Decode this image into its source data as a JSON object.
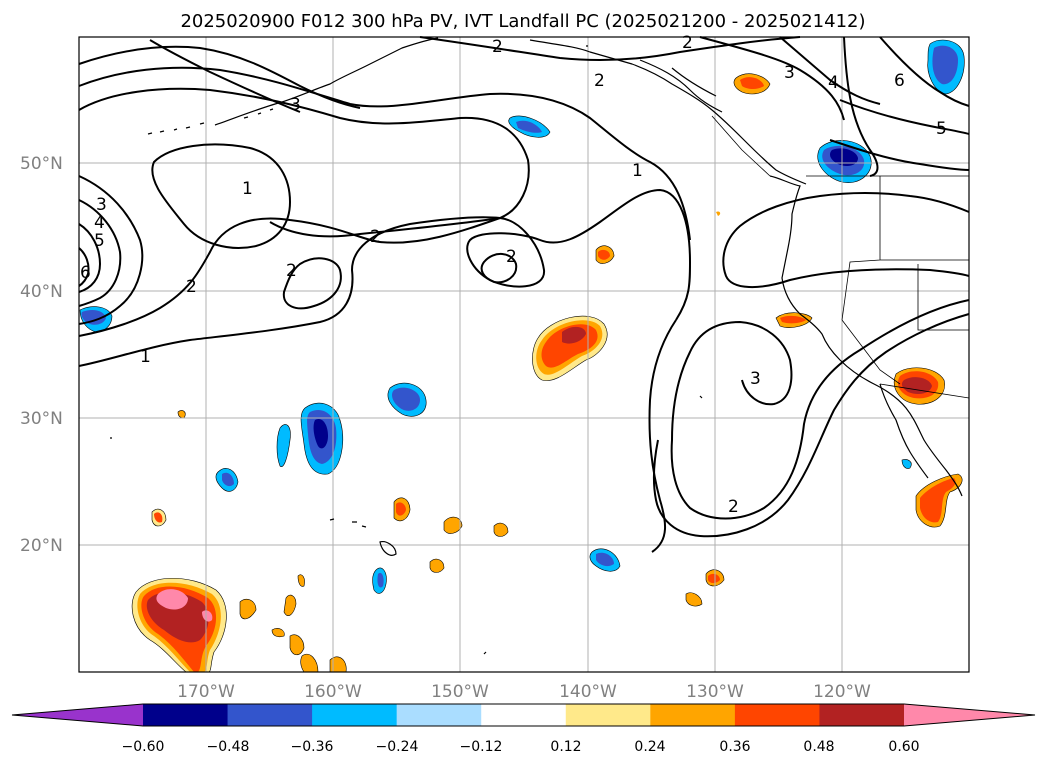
{
  "title": "2025020900 F012 300 hPa PV, IVT Landfall PC (2025021200 - 2025021412)",
  "map": {
    "lon_range": [
      -180,
      -110
    ],
    "lat_range": [
      10,
      60
    ],
    "lat_labels": [
      "20°N",
      "30°N",
      "40°N",
      "50°N"
    ],
    "lon_labels": [
      "170°W",
      "160°W",
      "150°W",
      "140°W",
      "130°W",
      "120°W"
    ],
    "grid": true,
    "contour_labels": [
      "1",
      "1",
      "1",
      "2",
      "2",
      "2",
      "2",
      "2",
      "2",
      "2",
      "2",
      "3",
      "3",
      "3",
      "4",
      "4",
      "5",
      "5",
      "6",
      "6",
      "3"
    ]
  },
  "colorbar": {
    "ticks": [
      "−0.60",
      "−0.48",
      "−0.36",
      "−0.24",
      "−0.12",
      "0.12",
      "0.24",
      "0.36",
      "0.48",
      "0.60"
    ],
    "colors": [
      "#9933cc",
      "#00008b",
      "#3355cc",
      "#00bbff",
      "#aaddff",
      "#ffffff",
      "#ffe98a",
      "#ffa500",
      "#ff4500",
      "#b22222",
      "#ff88aa"
    ],
    "extend": "both"
  }
}
